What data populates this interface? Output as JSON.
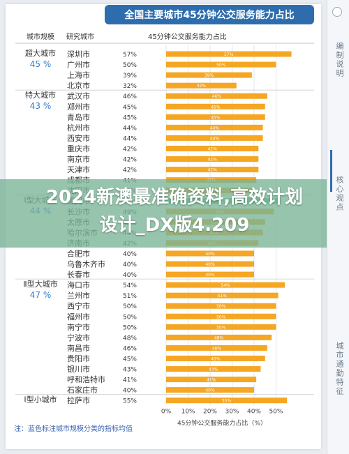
{
  "chart_data": {
    "type": "bar",
    "orientation": "horizontal",
    "title": "全国主要城市45分钟公交服务能力占比",
    "column_headers": [
      "城市规模",
      "研究城市",
      "45分钟公交服务能力占比"
    ],
    "xlabel": "45分钟公交服务能力占比（%）",
    "xlim": [
      0,
      60
    ],
    "xticks": [
      "0%",
      "10%",
      "20%",
      "30%",
      "40%",
      "50%"
    ],
    "note": "注：蓝色标注城市规模分类的指标均值",
    "groups": [
      {
        "name": "超大城市",
        "avg": "45 %"
      },
      {
        "name": "特大城市",
        "avg": "43 %"
      },
      {
        "name": "Ⅰ型大城市",
        "avg": "44 %"
      },
      {
        "name": "Ⅱ型大城市",
        "avg": "47 %"
      },
      {
        "name": "Ⅰ型小城市",
        "avg": ""
      }
    ],
    "cities": [
      {
        "city": "深圳市",
        "value": 57
      },
      {
        "city": "广州市",
        "value": 50
      },
      {
        "city": "上海市",
        "value": 39
      },
      {
        "city": "北京市",
        "value": 32
      },
      {
        "city": "武汉市",
        "value": 46
      },
      {
        "city": "郑州市",
        "value": 45
      },
      {
        "city": "青岛市",
        "value": 45
      },
      {
        "city": "杭州市",
        "value": 44
      },
      {
        "city": "西安市",
        "value": 44
      },
      {
        "city": "重庆市",
        "value": 42
      },
      {
        "city": "南京市",
        "value": 42
      },
      {
        "city": "天津市",
        "value": 42
      },
      {
        "city": "成都市",
        "value": 41
      },
      {
        "city": "沈阳市",
        "value": 40
      },
      {
        "city": "厦门市",
        "value": 52
      },
      {
        "city": "长沙市",
        "value": 49
      },
      {
        "city": "太原市",
        "value": 45
      },
      {
        "city": "哈尔滨市",
        "value": 44
      },
      {
        "city": "济南市",
        "value": 42
      },
      {
        "city": "合肥市",
        "value": 40
      },
      {
        "city": "乌鲁木齐市",
        "value": 40
      },
      {
        "city": "长春市",
        "value": 40
      },
      {
        "city": "海口市",
        "value": 54
      },
      {
        "city": "兰州市",
        "value": 51
      },
      {
        "city": "西宁市",
        "value": 50
      },
      {
        "city": "福州市",
        "value": 50
      },
      {
        "city": "南宁市",
        "value": 50
      },
      {
        "city": "宁波市",
        "value": 48
      },
      {
        "city": "南昌市",
        "value": 46
      },
      {
        "city": "贵阳市",
        "value": 45
      },
      {
        "city": "银川市",
        "value": 43
      },
      {
        "city": "呼和浩特市",
        "value": 41
      },
      {
        "city": "石家庄市",
        "value": 40
      },
      {
        "city": "拉萨市",
        "value": 55
      }
    ],
    "grid": true,
    "legend": "none"
  },
  "overlay": {
    "line1": "2024新澳最准确资料,高效计划",
    "line2": "设计_DX版4.209"
  },
  "sidebar": {
    "tabs": [
      "编制说明",
      "核心观点",
      "城市通勤特征"
    ]
  },
  "colors": {
    "bar": "#f5a623",
    "bar_green": "#5cc27c",
    "title_bg": "#2e6dad",
    "avg_text": "#2e7fd1",
    "overlay": "#78b496"
  }
}
